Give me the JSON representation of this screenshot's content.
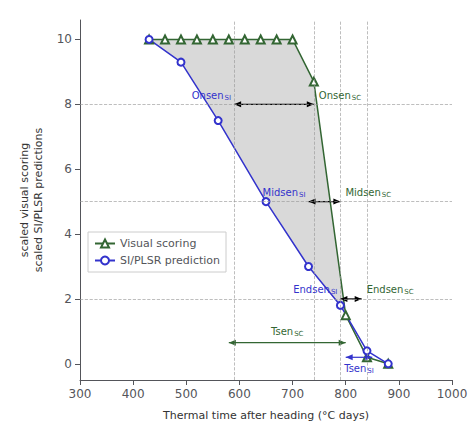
{
  "chart_data": {
    "type": "line",
    "xlabel": "Thermal time after heading (°C days)",
    "ylabel": "scaled visual scoring\nscaled SI/PLSR predictions",
    "series": [
      {
        "name": "Visual scoring",
        "color": "#336633",
        "marker": "triangle",
        "x": [
          430,
          460,
          490,
          520,
          550,
          580,
          610,
          640,
          670,
          700,
          740,
          800,
          840,
          880
        ],
        "values": [
          10.0,
          10.0,
          10.0,
          10.0,
          10.0,
          10.0,
          10.0,
          10.0,
          10.0,
          10.0,
          8.7,
          1.5,
          0.2,
          0.0
        ]
      },
      {
        "name": "SI/PLSR prediction",
        "color": "#3333cc",
        "marker": "circle",
        "x": [
          430,
          490,
          560,
          650,
          730,
          790,
          840,
          880
        ],
        "values": [
          10.0,
          9.3,
          7.5,
          5.0,
          3.0,
          1.8,
          0.4,
          0.0
        ]
      }
    ],
    "fill": {
      "between": [
        "SI/PLSR prediction",
        "Visual scoring"
      ],
      "color": "#aaaaaa"
    },
    "reference_lines": {
      "x": [
        590,
        740,
        790,
        840
      ],
      "y": [
        2,
        5,
        8
      ],
      "color": "#999999",
      "line_style": "dashed"
    },
    "arrows": [
      {
        "x1": 590,
        "x2": 740,
        "y": 8.0,
        "color": "#000000"
      },
      {
        "x1": 730,
        "x2": 790,
        "y": 5.0,
        "color": "#000000"
      },
      {
        "x1": 790,
        "x2": 830,
        "y": 2.0,
        "color": "#000000"
      },
      {
        "x1": 580,
        "x2": 800,
        "y": 0.65,
        "color": "#336633"
      },
      {
        "x1": 800,
        "x2": 850,
        "y": 0.2,
        "color": "#3333cc"
      }
    ],
    "annotations": [
      {
        "text": "Onsen",
        "subscript": "SI",
        "x": 590,
        "y": 8.0,
        "color": "#3333cc",
        "position": "left"
      },
      {
        "text": "Onsen",
        "subscript": "SC",
        "x": 740,
        "y": 8.0,
        "color": "#336633",
        "position": "right"
      },
      {
        "text": "Midsen",
        "subscript": "SI",
        "x": 730,
        "y": 5.0,
        "color": "#3333cc",
        "position": "left"
      },
      {
        "text": "Midsen",
        "subscript": "SC",
        "x": 790,
        "y": 5.0,
        "color": "#336633",
        "position": "right"
      },
      {
        "text": "Endsen",
        "subscript": "SI",
        "x": 790,
        "y": 2.0,
        "color": "#3333cc",
        "position": "left"
      },
      {
        "text": "Endsen",
        "subscript": "SC",
        "x": 830,
        "y": 2.0,
        "color": "#336633",
        "position": "right"
      },
      {
        "text": "Tsen",
        "subscript": "SC",
        "x": 690,
        "y": 0.65,
        "color": "#336633",
        "position": "above"
      },
      {
        "text": "Tsen",
        "subscript": "SI",
        "x": 825,
        "y": 0.2,
        "color": "#3333cc",
        "position": "below"
      }
    ],
    "xlim": [
      300,
      1000
    ],
    "ylim": [
      -0.5,
      10.6
    ],
    "xticks": [
      300,
      400,
      500,
      600,
      700,
      800,
      900,
      1000
    ],
    "yticks": [
      0,
      2,
      4,
      6,
      8,
      10
    ],
    "grid": false,
    "legend": "lower left"
  }
}
